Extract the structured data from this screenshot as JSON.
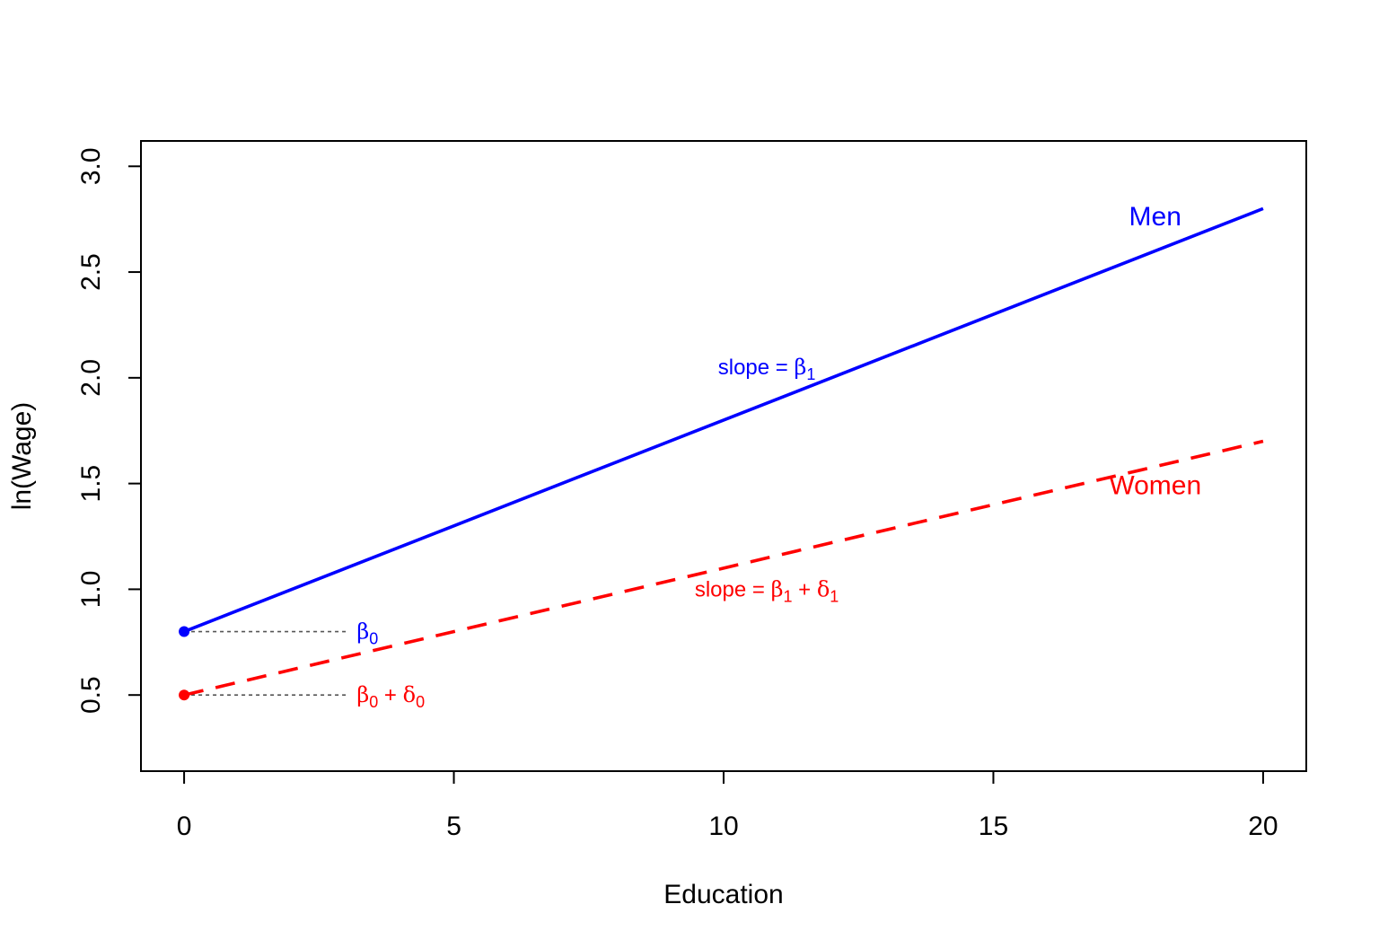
{
  "chart_data": {
    "type": "line",
    "title": "",
    "xlabel": "Education",
    "ylabel": "ln(Wage)",
    "xlim": [
      -0.8,
      20.8
    ],
    "ylim": [
      0.14,
      3.12
    ],
    "x_ticks": [
      0,
      5,
      10,
      15,
      20
    ],
    "y_ticks": [
      0.5,
      1.0,
      1.5,
      2.0,
      2.5,
      3.0
    ],
    "x_tick_labels": [
      "0",
      "5",
      "10",
      "15",
      "20"
    ],
    "y_tick_labels": [
      "0.5",
      "1.0",
      "1.5",
      "2.0",
      "2.5",
      "3.0"
    ],
    "grid": false,
    "series": [
      {
        "name": "Men",
        "color": "#0000FF",
        "style": "solid",
        "x": [
          0,
          20
        ],
        "y": [
          0.8,
          2.8
        ],
        "label_at": [
          18,
          2.72
        ]
      },
      {
        "name": "Women",
        "color": "#FF0000",
        "style": "dashed",
        "x": [
          0,
          20
        ],
        "y": [
          0.5,
          1.7
        ],
        "label_at": [
          18,
          1.45
        ]
      }
    ],
    "intercept_points": [
      {
        "x": 0,
        "y": 0.8,
        "color": "#0000FF"
      },
      {
        "x": 0,
        "y": 0.5,
        "color": "#FF0000"
      }
    ],
    "reference_lines": [
      {
        "x": [
          0,
          3
        ],
        "y": 0.8,
        "color": "#555555",
        "style": "dotted"
      },
      {
        "x": [
          0,
          3
        ],
        "y": 0.5,
        "color": "#555555",
        "style": "dotted"
      }
    ],
    "annotations": [
      {
        "id": "slope-men",
        "color": "#0000FF",
        "at": [
          10.8,
          2.05
        ],
        "align": "middle",
        "parts": [
          {
            "t": "slope = "
          },
          {
            "t": "β",
            "greek": true
          },
          {
            "t": "1",
            "sub": true
          }
        ]
      },
      {
        "id": "slope-women",
        "color": "#FF0000",
        "at": [
          10.8,
          1.0
        ],
        "align": "middle",
        "parts": [
          {
            "t": "slope = "
          },
          {
            "t": "β",
            "greek": true
          },
          {
            "t": "1",
            "sub": true
          },
          {
            "t": " + "
          },
          {
            "t": "δ",
            "greek": true
          },
          {
            "t": "1",
            "sub": true
          }
        ]
      },
      {
        "id": "intercept-men",
        "color": "#0000FF",
        "at": [
          3.2,
          0.8
        ],
        "align": "start",
        "parts": [
          {
            "t": "β",
            "greek": true
          },
          {
            "t": "0",
            "sub": true
          }
        ]
      },
      {
        "id": "intercept-women",
        "color": "#FF0000",
        "at": [
          3.2,
          0.5
        ],
        "align": "start",
        "parts": [
          {
            "t": "β",
            "greek": true
          },
          {
            "t": "0",
            "sub": true
          },
          {
            "t": " + "
          },
          {
            "t": "δ",
            "greek": true
          },
          {
            "t": "0",
            "sub": true
          }
        ]
      }
    ]
  }
}
